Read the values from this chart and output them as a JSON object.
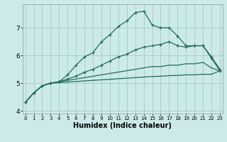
{
  "xlabel": "Humidex (Indice chaleur)",
  "background_color": "#cdeaea",
  "grid_color": "#aacece",
  "line_color": "#1e6b60",
  "x_ticks": [
    0,
    1,
    2,
    3,
    4,
    5,
    6,
    7,
    8,
    9,
    10,
    11,
    12,
    13,
    14,
    15,
    16,
    17,
    18,
    19,
    20,
    21,
    22,
    23
  ],
  "xlim": [
    -0.3,
    23.3
  ],
  "ylim": [
    3.9,
    7.85
  ],
  "yticks": [
    4,
    5,
    6,
    7
  ],
  "series": [
    {
      "x": [
        0,
        1,
        2,
        3,
        4,
        5,
        6,
        7,
        8,
        9,
        10,
        11,
        12,
        13,
        14,
        15,
        16,
        17,
        18,
        19,
        20,
        21,
        22,
        23
      ],
      "y": [
        4.3,
        4.65,
        4.9,
        5.0,
        5.05,
        5.3,
        5.65,
        5.95,
        6.1,
        6.5,
        6.75,
        7.05,
        7.25,
        7.55,
        7.6,
        7.1,
        7.0,
        7.0,
        6.7,
        6.35,
        6.35,
        6.35,
        5.95,
        5.5
      ],
      "marker": true
    },
    {
      "x": [
        3,
        23
      ],
      "y": [
        5.0,
        5.45
      ],
      "full_x": [
        0,
        1,
        2,
        3,
        4,
        5,
        6,
        7,
        8,
        9,
        10,
        11,
        12,
        13,
        14,
        15,
        16,
        17,
        18,
        19,
        20,
        21,
        22,
        23
      ],
      "full_y": [
        4.3,
        4.65,
        4.9,
        5.0,
        5.05,
        5.15,
        5.25,
        5.4,
        5.5,
        5.65,
        5.8,
        5.95,
        6.05,
        6.2,
        6.3,
        6.35,
        6.4,
        6.5,
        6.35,
        6.3,
        6.35,
        6.35,
        5.9,
        5.45
      ],
      "marker": true
    },
    {
      "full_x": [
        0,
        1,
        2,
        3,
        4,
        5,
        6,
        7,
        8,
        9,
        10,
        11,
        12,
        13,
        14,
        15,
        16,
        17,
        18,
        19,
        20,
        21,
        22,
        23
      ],
      "full_y": [
        4.3,
        4.65,
        4.9,
        5.0,
        5.05,
        5.1,
        5.15,
        5.2,
        5.25,
        5.3,
        5.35,
        5.4,
        5.45,
        5.5,
        5.55,
        5.6,
        5.6,
        5.65,
        5.65,
        5.7,
        5.7,
        5.75,
        5.55,
        5.45
      ],
      "marker": false
    },
    {
      "full_x": [
        0,
        1,
        2,
        3,
        4,
        5,
        6,
        7,
        8,
        9,
        10,
        11,
        12,
        13,
        14,
        15,
        16,
        17,
        18,
        19,
        20,
        21,
        22,
        23
      ],
      "full_y": [
        4.3,
        4.65,
        4.9,
        5.0,
        5.02,
        5.04,
        5.06,
        5.08,
        5.1,
        5.12,
        5.14,
        5.16,
        5.18,
        5.2,
        5.22,
        5.24,
        5.25,
        5.27,
        5.28,
        5.3,
        5.3,
        5.32,
        5.32,
        5.45
      ],
      "marker": false
    }
  ]
}
